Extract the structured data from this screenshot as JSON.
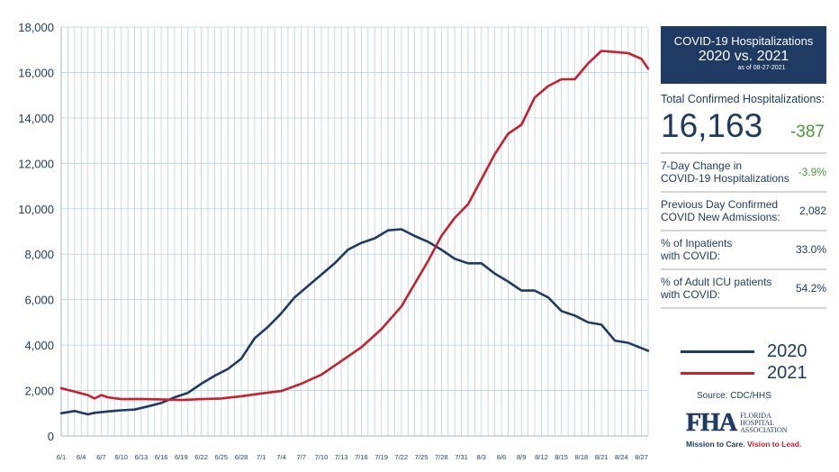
{
  "chart_data": {
    "type": "line",
    "title": "",
    "xlabel": "",
    "ylabel": "",
    "ylim": [
      0,
      18000
    ],
    "yticks": [
      "0",
      "2,000",
      "4,000",
      "6,000",
      "8,000",
      "10,000",
      "12,000",
      "14,000",
      "16,000",
      "18,000"
    ],
    "x_tick_labels": [
      "6/1",
      "6/4",
      "6/7",
      "6/10",
      "6/13",
      "6/16",
      "6/19",
      "6/22",
      "6/25",
      "6/28",
      "7/1",
      "7/4",
      "7/7",
      "7/10",
      "7/13",
      "7/16",
      "7/19",
      "7/22",
      "7/25",
      "7/28",
      "7/31",
      "8/3",
      "8/6",
      "8/9",
      "8/12",
      "8/15",
      "8/18",
      "8/21",
      "8/24",
      "8/27"
    ],
    "x_range": [
      "6/1",
      "8/28"
    ],
    "grid": "vertical",
    "series": [
      {
        "name": "2020",
        "color": "#1f3a63",
        "x": [
          "6/1",
          "6/3",
          "6/5",
          "6/6",
          "6/8",
          "6/10",
          "6/12",
          "6/14",
          "6/16",
          "6/18",
          "6/20",
          "6/22",
          "6/24",
          "6/26",
          "6/28",
          "6/30",
          "7/2",
          "7/4",
          "7/6",
          "7/8",
          "7/10",
          "7/12",
          "7/14",
          "7/16",
          "7/18",
          "7/20",
          "7/22",
          "7/24",
          "7/26",
          "7/28",
          "7/30",
          "8/1",
          "8/3",
          "8/5",
          "8/7",
          "8/9",
          "8/11",
          "8/13",
          "8/15",
          "8/17",
          "8/19",
          "8/21",
          "8/23",
          "8/25",
          "8/28"
        ],
        "values": [
          1000,
          1100,
          950,
          1020,
          1080,
          1130,
          1160,
          1300,
          1450,
          1700,
          1900,
          2300,
          2650,
          2950,
          3400,
          4300,
          4800,
          5400,
          6100,
          6600,
          7100,
          7600,
          8200,
          8500,
          8700,
          9050,
          9100,
          8800,
          8550,
          8200,
          7800,
          7600,
          7600,
          7150,
          6800,
          6400,
          6400,
          6100,
          5500,
          5300,
          5000,
          4900,
          4200,
          4100,
          3750
        ]
      },
      {
        "name": "2021",
        "color": "#c8202f",
        "x": [
          "6/1",
          "6/3",
          "6/5",
          "6/6",
          "6/7",
          "6/8",
          "6/10",
          "6/13",
          "6/16",
          "6/19",
          "6/22",
          "6/25",
          "6/28",
          "7/1",
          "7/4",
          "7/7",
          "7/10",
          "7/13",
          "7/16",
          "7/19",
          "7/22",
          "7/24",
          "7/26",
          "7/28",
          "7/30",
          "8/1",
          "8/3",
          "8/5",
          "8/7",
          "8/9",
          "8/11",
          "8/13",
          "8/15",
          "8/17",
          "8/19",
          "8/21",
          "8/23",
          "8/25",
          "8/27",
          "8/28"
        ],
        "values": [
          2100,
          1950,
          1800,
          1650,
          1800,
          1700,
          1620,
          1630,
          1610,
          1580,
          1620,
          1650,
          1750,
          1870,
          1980,
          2300,
          2700,
          3300,
          3900,
          4700,
          5700,
          6700,
          7700,
          8800,
          9600,
          10200,
          11300,
          12400,
          13300,
          13700,
          14900,
          15400,
          15700,
          15700,
          16400,
          16950,
          16900,
          16850,
          16600,
          16163
        ]
      }
    ]
  },
  "panel": {
    "title_line1": "COVID-19 Hospitalizations",
    "title_line2": "2020 vs. 2021",
    "asof": "as of 08-27-2021",
    "total_label": "Total Confirmed Hospitalizations:",
    "total_value": "16,163",
    "total_change": "-387",
    "stats": [
      {
        "label_l1": "7-Day Change in",
        "label_l2": "COVID-19 Hospitalizations",
        "value": "-3.9%",
        "color": "#4a9a3a"
      },
      {
        "label_l1": "Previous Day Confirmed",
        "label_l2": "COVID New Admissions:",
        "value": "2,082",
        "color": "#1e3a5f"
      },
      {
        "label_l1": "% of Inpatients",
        "label_l2": "with COVID:",
        "value": "33.0%",
        "color": "#1e3a5f"
      },
      {
        "label_l1": "% of Adult ICU patients",
        "label_l2": "with COVID:",
        "value": "54.2%",
        "color": "#1e3a5f"
      }
    ]
  },
  "legend": {
    "item_2020": "2020",
    "item_2021": "2021"
  },
  "source": "Source: CDC/HHS",
  "logo": {
    "mark": "FHA",
    "line1": "FLORIDA",
    "line2": "HOSPITAL",
    "line3": "ASSOCIATION",
    "tag_a": "Mission to Care.",
    "tag_b": "Vision to Lead."
  }
}
